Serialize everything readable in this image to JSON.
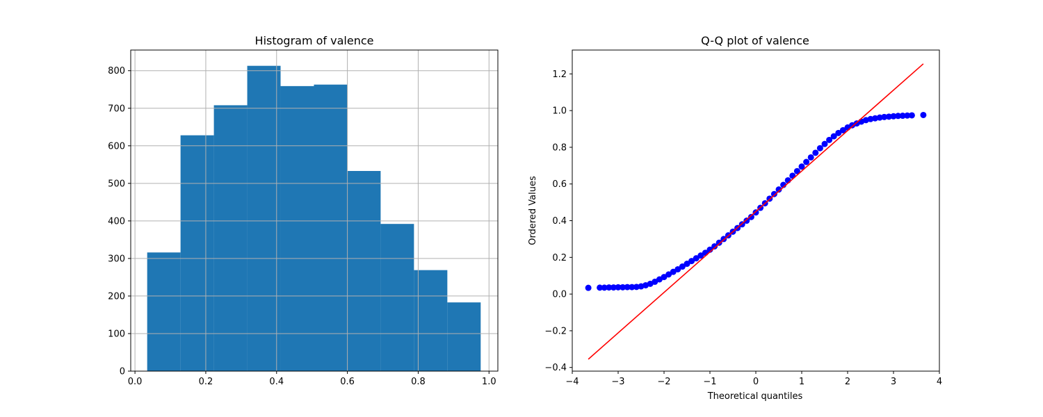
{
  "chart_data": [
    {
      "type": "bar",
      "title": "Histogram of valence",
      "xlabel": "",
      "ylabel": "",
      "xlim": [
        -0.012,
        1.025
      ],
      "ylim": [
        0,
        855
      ],
      "grid": true,
      "bar_color": "#1f77b4",
      "grid_color": "#b0b0b0",
      "bin_edges": [
        0.0345,
        0.1287,
        0.2229,
        0.3171,
        0.4113,
        0.5055,
        0.5997,
        0.6939,
        0.7881,
        0.8823,
        0.9765
      ],
      "values": [
        316,
        628,
        708,
        813,
        759,
        763,
        533,
        392,
        269,
        183
      ],
      "xticks": [
        0.0,
        0.2,
        0.4,
        0.6,
        0.8,
        1.0
      ],
      "xtick_labels": [
        "0.0",
        "0.2",
        "0.4",
        "0.6",
        "0.8",
        "1.0"
      ],
      "yticks": [
        0,
        100,
        200,
        300,
        400,
        500,
        600,
        700,
        800
      ],
      "ytick_labels": [
        "0",
        "100",
        "200",
        "300",
        "400",
        "500",
        "600",
        "700",
        "800"
      ]
    },
    {
      "type": "scatter",
      "title": "Q-Q plot of valence",
      "xlabel": "Theoretical quantiles",
      "ylabel": "Ordered Values",
      "xlim": [
        -4.0,
        4.0
      ],
      "ylim": [
        -0.42,
        1.33
      ],
      "grid": false,
      "point_color": "#0000ff",
      "line_color": "#ff0000",
      "fit_line": {
        "x": [
          -3.65,
          3.65
        ],
        "y": [
          -0.355,
          1.255
        ]
      },
      "x": [
        -3.65,
        -3.4,
        -3.3,
        -3.2,
        -3.1,
        -3.0,
        -2.9,
        -2.8,
        -2.7,
        -2.6,
        -2.5,
        -2.4,
        -2.3,
        -2.2,
        -2.1,
        -2.0,
        -1.9,
        -1.8,
        -1.7,
        -1.6,
        -1.5,
        -1.4,
        -1.3,
        -1.2,
        -1.1,
        -1.0,
        -0.9,
        -0.8,
        -0.7,
        -0.6,
        -0.5,
        -0.4,
        -0.3,
        -0.2,
        -0.1,
        0.0,
        0.1,
        0.2,
        0.3,
        0.4,
        0.5,
        0.6,
        0.7,
        0.8,
        0.9,
        1.0,
        1.1,
        1.2,
        1.3,
        1.4,
        1.5,
        1.6,
        1.7,
        1.8,
        1.9,
        2.0,
        2.1,
        2.2,
        2.3,
        2.4,
        2.5,
        2.6,
        2.7,
        2.8,
        2.9,
        3.0,
        3.1,
        3.2,
        3.3,
        3.4,
        3.65
      ],
      "y": [
        0.034,
        0.035,
        0.035,
        0.036,
        0.036,
        0.037,
        0.037,
        0.038,
        0.038,
        0.039,
        0.042,
        0.048,
        0.056,
        0.067,
        0.08,
        0.093,
        0.107,
        0.121,
        0.135,
        0.15,
        0.165,
        0.18,
        0.195,
        0.21,
        0.225,
        0.242,
        0.26,
        0.28,
        0.3,
        0.32,
        0.34,
        0.36,
        0.38,
        0.4,
        0.42,
        0.445,
        0.47,
        0.495,
        0.52,
        0.545,
        0.57,
        0.595,
        0.62,
        0.645,
        0.67,
        0.695,
        0.72,
        0.745,
        0.77,
        0.795,
        0.818,
        0.84,
        0.86,
        0.878,
        0.893,
        0.908,
        0.92,
        0.93,
        0.94,
        0.948,
        0.954,
        0.958,
        0.962,
        0.965,
        0.967,
        0.969,
        0.971,
        0.972,
        0.973,
        0.974,
        0.976
      ],
      "xticks": [
        -4,
        -3,
        -2,
        -1,
        0,
        1,
        2,
        3,
        4
      ],
      "xtick_labels": [
        "−4",
        "−3",
        "−2",
        "−1",
        "0",
        "1",
        "2",
        "3",
        "4"
      ],
      "yticks": [
        -0.4,
        -0.2,
        0.0,
        0.2,
        0.4,
        0.6,
        0.8,
        1.0,
        1.2
      ],
      "ytick_labels": [
        "−0.4",
        "−0.2",
        "0.0",
        "0.2",
        "0.4",
        "0.6",
        "0.8",
        "1.0",
        "1.2"
      ]
    }
  ]
}
